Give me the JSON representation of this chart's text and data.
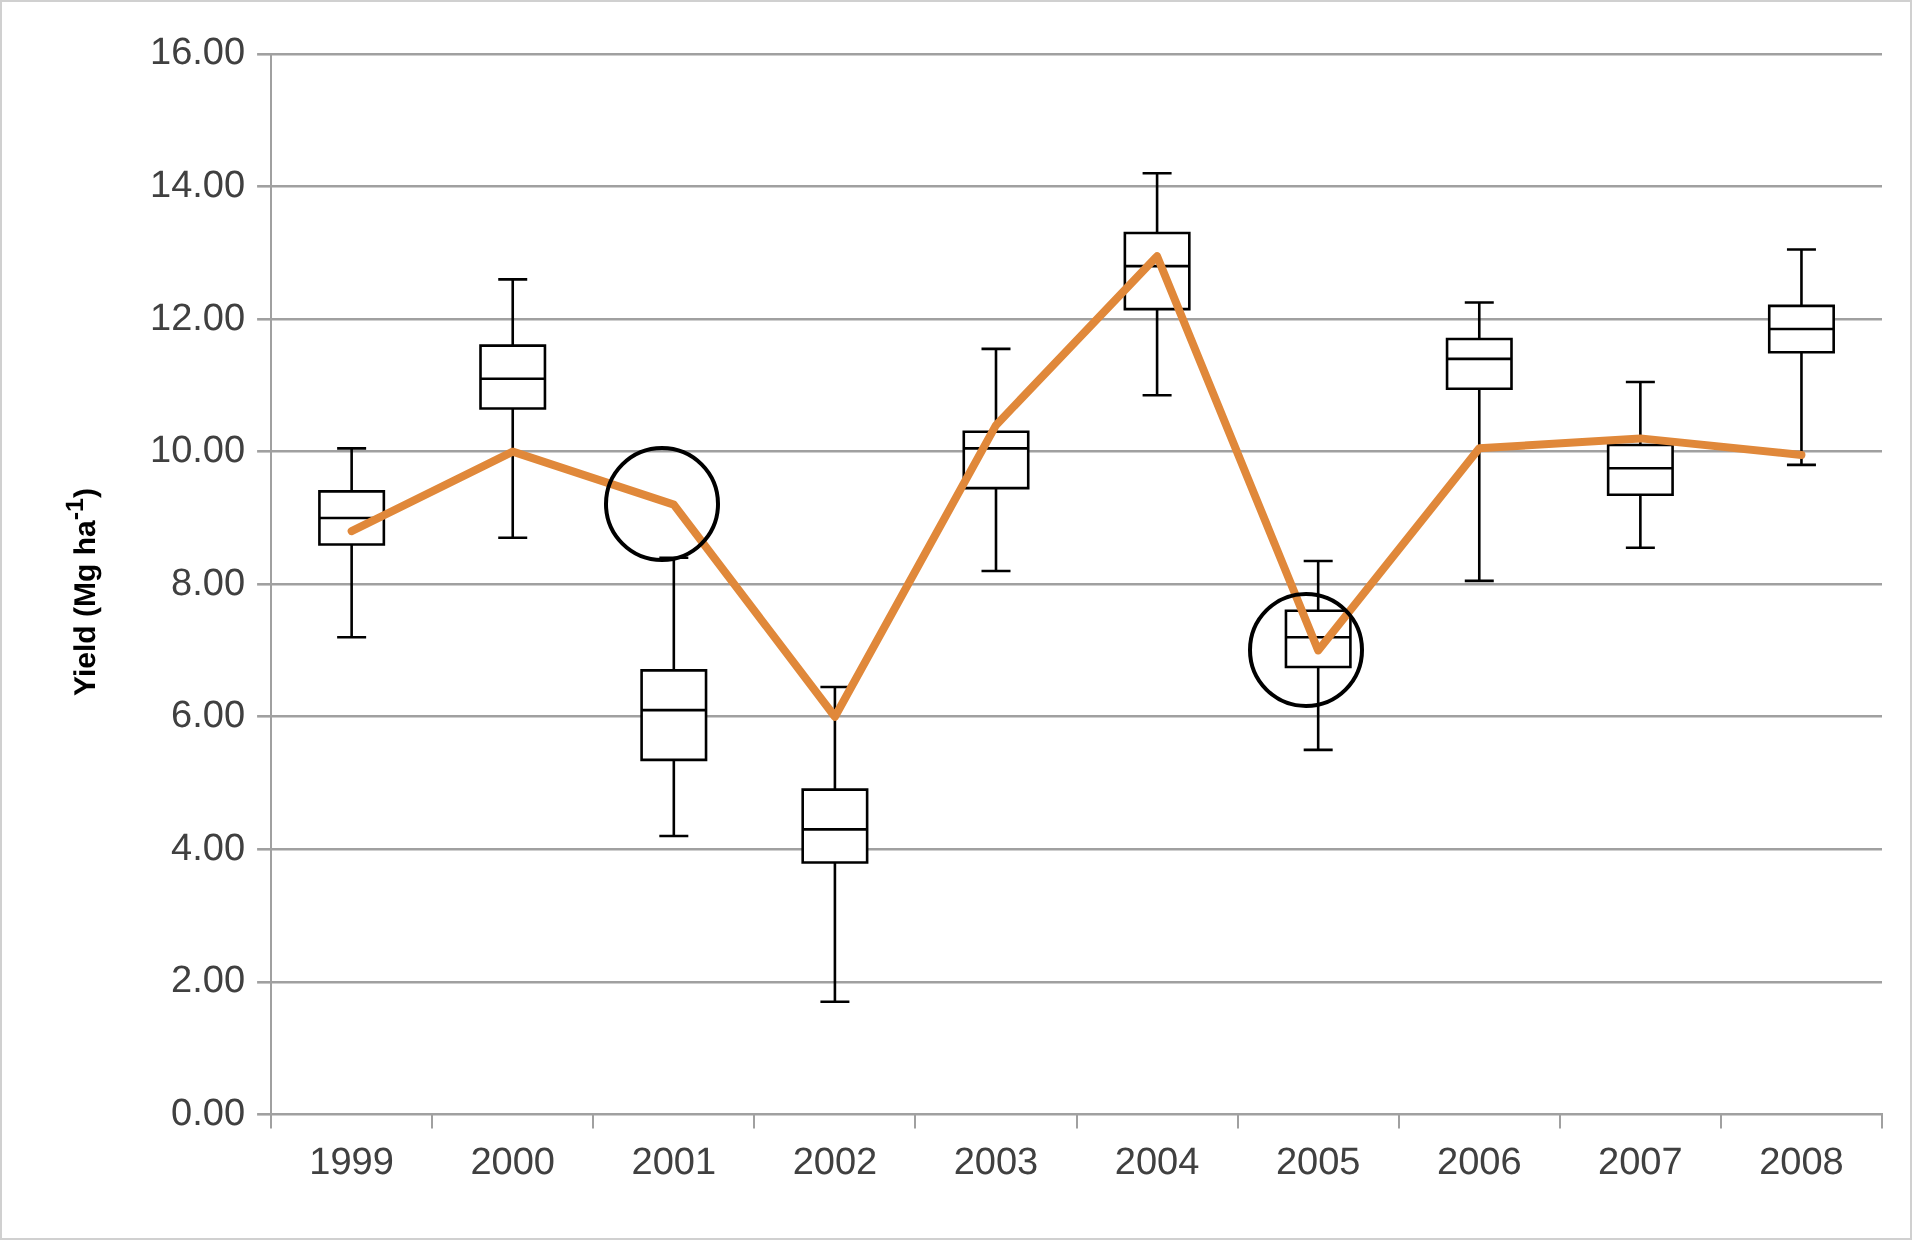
{
  "chart_data": {
    "type": "box",
    "ylabel": "Yield (Mg ha$^{-1}$)",
    "categories": [
      "1999",
      "2000",
      "2001",
      "2002",
      "2003",
      "2004",
      "2005",
      "2006",
      "2007",
      "2008"
    ],
    "boxes": [
      {
        "low": 7.2,
        "q1": 8.6,
        "median": 9.0,
        "q3": 9.4,
        "high": 10.05
      },
      {
        "low": 8.7,
        "q1": 10.65,
        "median": 11.1,
        "q3": 11.6,
        "high": 12.6
      },
      {
        "low": 4.2,
        "q1": 5.35,
        "median": 6.1,
        "q3": 6.7,
        "high": 8.4
      },
      {
        "low": 1.7,
        "q1": 3.8,
        "median": 4.3,
        "q3": 4.9,
        "high": 6.45
      },
      {
        "low": 8.2,
        "q1": 9.45,
        "median": 10.05,
        "q3": 10.3,
        "high": 11.55
      },
      {
        "low": 10.85,
        "q1": 12.15,
        "median": 12.8,
        "q3": 13.3,
        "high": 14.2
      },
      {
        "low": 5.5,
        "q1": 6.75,
        "median": 7.2,
        "q3": 7.6,
        "high": 8.35
      },
      {
        "low": 8.05,
        "q1": 10.95,
        "median": 11.4,
        "q3": 11.7,
        "high": 12.25
      },
      {
        "low": 8.55,
        "q1": 9.35,
        "median": 9.75,
        "q3": 10.1,
        "high": 11.05
      },
      {
        "low": 9.8,
        "q1": 11.5,
        "median": 11.85,
        "q3": 12.2,
        "high": 13.05
      }
    ],
    "series": [
      {
        "type": "line",
        "color": "#e0883a",
        "values": [
          8.8,
          10.0,
          9.2,
          6.0,
          10.4,
          12.95,
          7.0,
          10.05,
          10.2,
          9.95
        ]
      }
    ],
    "ylim": [
      0,
      16
    ],
    "yticks": [
      {
        "value": 0,
        "label": "0.00"
      },
      {
        "value": 2,
        "label": "2.00"
      },
      {
        "value": 4,
        "label": "4.00"
      },
      {
        "value": 6,
        "label": "6.00"
      },
      {
        "value": 8,
        "label": "8.00"
      },
      {
        "value": 10,
        "label": "10.00"
      },
      {
        "value": 12,
        "label": "12.00"
      },
      {
        "value": 14,
        "label": "14.00"
      },
      {
        "value": 16,
        "label": "16.00"
      }
    ],
    "grid": "y",
    "legend": false,
    "marker": "none",
    "line_style": "solid"
  }
}
